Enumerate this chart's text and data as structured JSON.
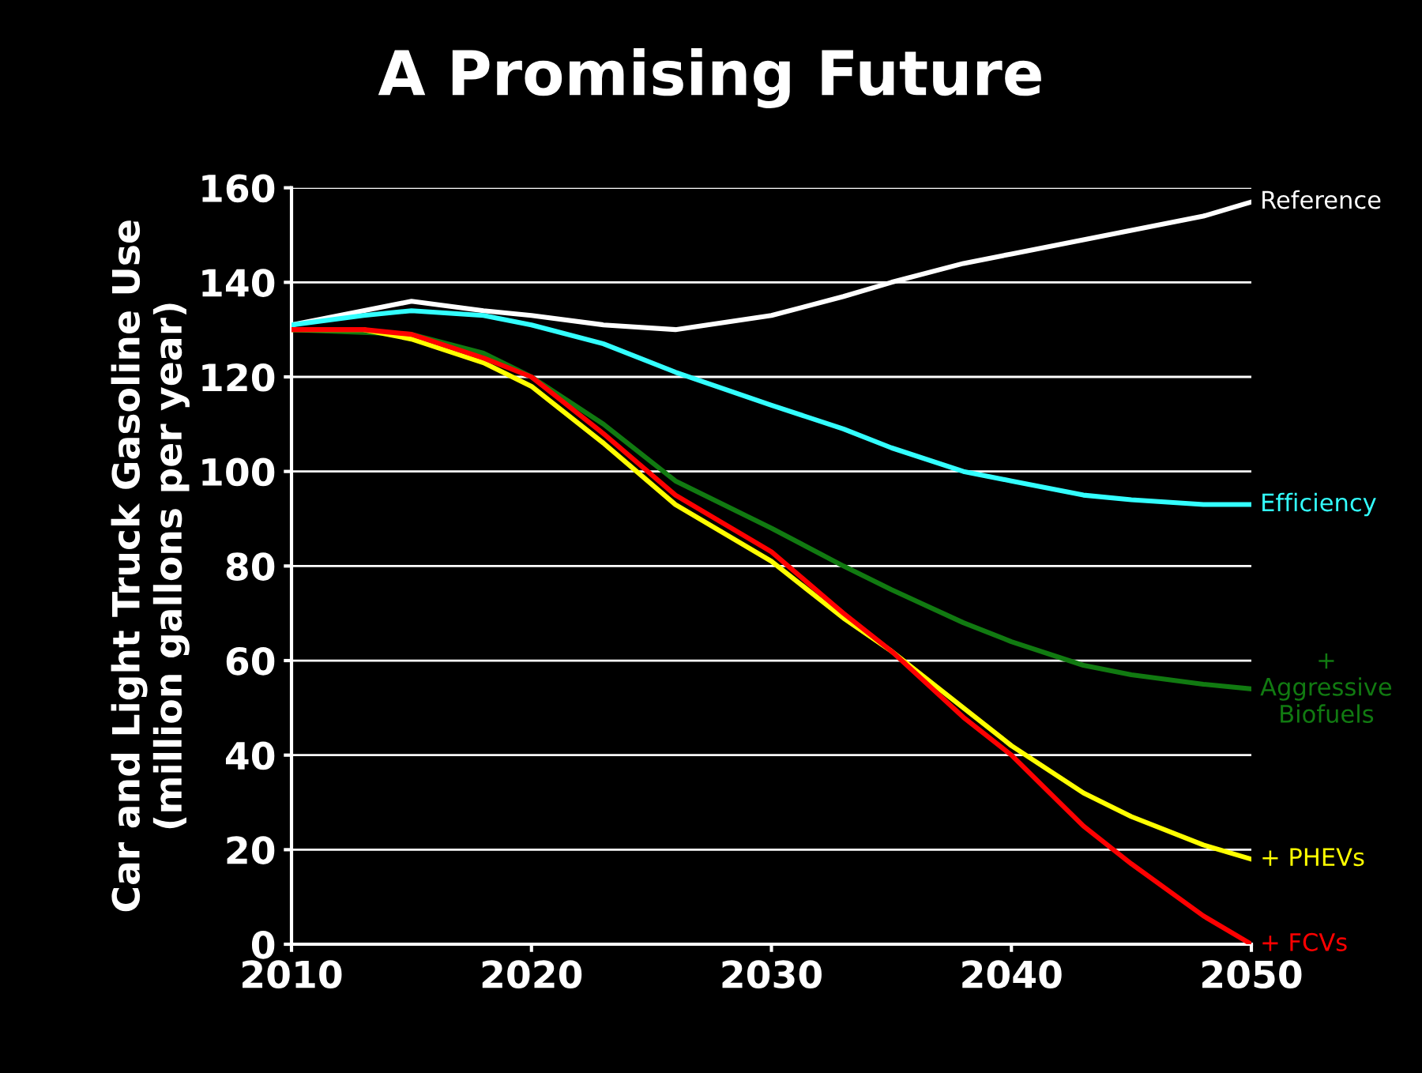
{
  "chart_data": {
    "type": "line",
    "title": "A Promising Future",
    "ylabel": "Car and Light Truck Gasoline Use\n(million gallons per year)",
    "x": [
      2010,
      2013,
      2015,
      2018,
      2020,
      2023,
      2026,
      2030,
      2033,
      2035,
      2038,
      2040,
      2043,
      2045,
      2048,
      2050
    ],
    "series": [
      {
        "name": "Reference",
        "color": "#ffffff",
        "values": [
          131,
          134,
          136,
          134,
          133,
          131,
          130,
          133,
          137,
          140,
          144,
          146,
          149,
          151,
          154,
          157
        ]
      },
      {
        "name": "Efficiency",
        "color": "#33ffff",
        "values": [
          131,
          133,
          134,
          133,
          131,
          127,
          121,
          114,
          109,
          105,
          100,
          98,
          95,
          94,
          93,
          93
        ]
      },
      {
        "name": "+\nAggressive\nBiofuels",
        "color": "#117a11",
        "x": [
          2010,
          2015,
          2018,
          2020,
          2023,
          2026,
          2030,
          2033,
          2035,
          2038,
          2040,
          2043,
          2045,
          2048,
          2050
        ],
        "values": [
          130,
          129,
          125,
          120,
          110,
          98,
          88,
          80,
          75,
          68,
          64,
          59,
          57,
          55,
          54
        ]
      },
      {
        "name": "+ PHEVs",
        "color": "#ffff00",
        "values": [
          130,
          130,
          128,
          123,
          118,
          106,
          93,
          81,
          69,
          62,
          50,
          42,
          32,
          27,
          21,
          18
        ]
      },
      {
        "name": "+ FCVs",
        "color": "#ff0000",
        "values": [
          130,
          130,
          129,
          124,
          120,
          108,
          95,
          83,
          70,
          62,
          48,
          40,
          25,
          17,
          6,
          0
        ]
      }
    ],
    "xlim": [
      2010,
      2050
    ],
    "xticks": [
      2010,
      2020,
      2030,
      2040,
      2050
    ],
    "ylim": [
      0,
      160
    ],
    "yticks": [
      0,
      20,
      40,
      60,
      80,
      100,
      120,
      140,
      160
    ],
    "grid": "y",
    "legend": false
  }
}
